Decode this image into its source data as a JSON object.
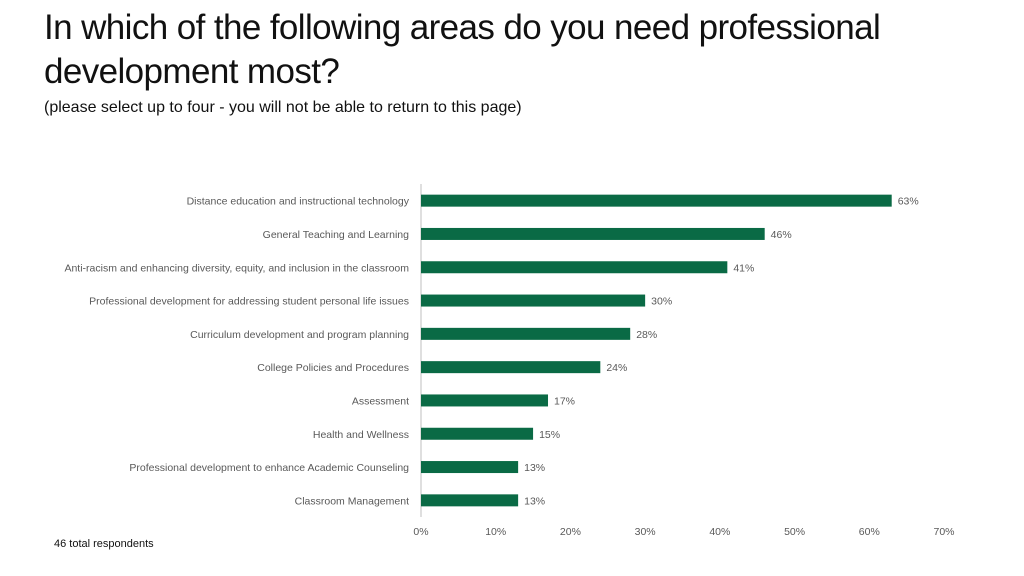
{
  "title": "In which of the following areas do you need professional development most?",
  "subtitle": "(please select up to four - you will not be able to return to this page)",
  "footnote": "46 total respondents",
  "colors": {
    "bar": "#0a6a45",
    "axis": "#bfbfbf",
    "text": "#595959"
  },
  "chart_data": {
    "type": "bar",
    "orientation": "horizontal",
    "categories": [
      "Distance education and instructional technology",
      "General Teaching and Learning",
      "Anti-racism and enhancing diversity, equity, and inclusion in the classroom",
      "Professional development for addressing student personal life issues",
      "Curriculum development and program planning",
      "College Policies and Procedures",
      "Assessment",
      "Health and Wellness",
      "Professional development to enhance Academic Counseling",
      "Classroom Management"
    ],
    "values": [
      63,
      46,
      41,
      30,
      28,
      24,
      17,
      15,
      13,
      13
    ],
    "value_labels": [
      "63%",
      "46%",
      "41%",
      "30%",
      "28%",
      "24%",
      "17%",
      "15%",
      "13%",
      "13%"
    ],
    "xlim": [
      0,
      70
    ],
    "xticks": [
      "0%",
      "10%",
      "20%",
      "30%",
      "40%",
      "50%",
      "60%",
      "70%"
    ],
    "grid": false,
    "legend": "none"
  }
}
